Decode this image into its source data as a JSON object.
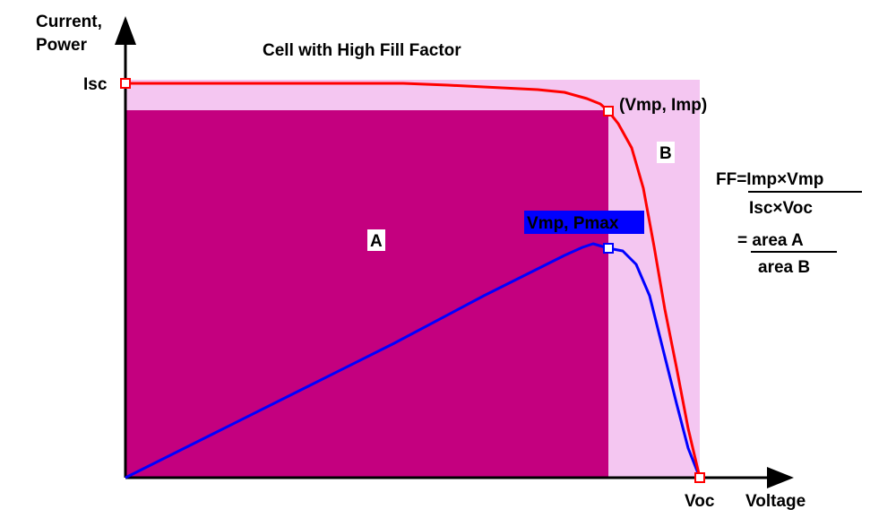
{
  "title": "Cell with High Fill Factor",
  "axes": {
    "y_label_line1": "Current,",
    "y_label_line2": "Power",
    "x_label": "Voltage"
  },
  "points": {
    "isc": "Isc",
    "voc": "Voc",
    "mpp_current": "(Vmp, Imp)",
    "mpp_power": "Vmp, Pmax"
  },
  "regions": {
    "a": "A",
    "b": "B"
  },
  "formula": {
    "lhs_num": "FF=Imp×Vmp",
    "den": "Isc×Voc",
    "eq2": "= area A",
    "den2": "area B"
  },
  "colors": {
    "area_a": "#c4007f",
    "area_b": "#f4c6f1",
    "iv_curve": "#ff0000",
    "power_curve": "#0000ff",
    "mpp_power_label_bg": "#0000ff",
    "mpp_power_label_text": "#ffffff"
  }
}
